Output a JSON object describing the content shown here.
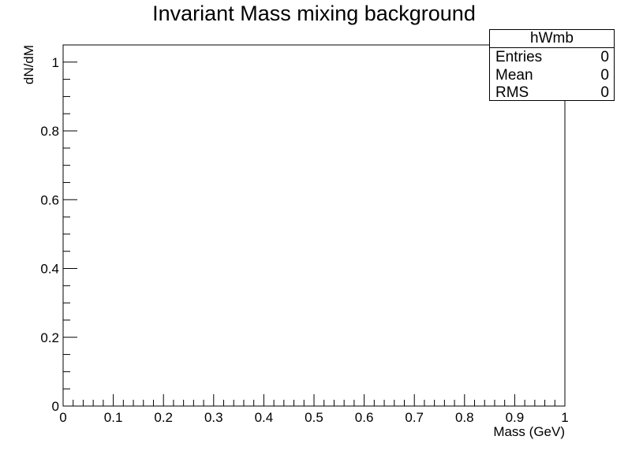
{
  "chart_data": {
    "type": "bar",
    "title": "Invariant Mass mixing background",
    "xlabel": "Mass (GeV)",
    "ylabel": "dN/dM",
    "xlim": [
      0,
      1
    ],
    "ylim": [
      0,
      1.05
    ],
    "x_ticks": [
      "0",
      "0.1",
      "0.2",
      "0.3",
      "0.4",
      "0.5",
      "0.6",
      "0.7",
      "0.8",
      "0.9",
      "1"
    ],
    "y_ticks": [
      "0",
      "0.2",
      "0.4",
      "0.6",
      "0.8",
      "1"
    ],
    "x_tick_values": [
      0,
      0.1,
      0.2,
      0.3,
      0.4,
      0.5,
      0.6,
      0.7,
      0.8,
      0.9,
      1
    ],
    "y_tick_values": [
      0,
      0.2,
      0.4,
      0.6,
      0.8,
      1
    ],
    "series": [],
    "grid": false
  },
  "stats_box": {
    "name": "hWmb",
    "rows": [
      {
        "label": "Entries",
        "value": "0"
      },
      {
        "label": "Mean",
        "value": "0"
      },
      {
        "label": "RMS",
        "value": "0"
      }
    ]
  }
}
